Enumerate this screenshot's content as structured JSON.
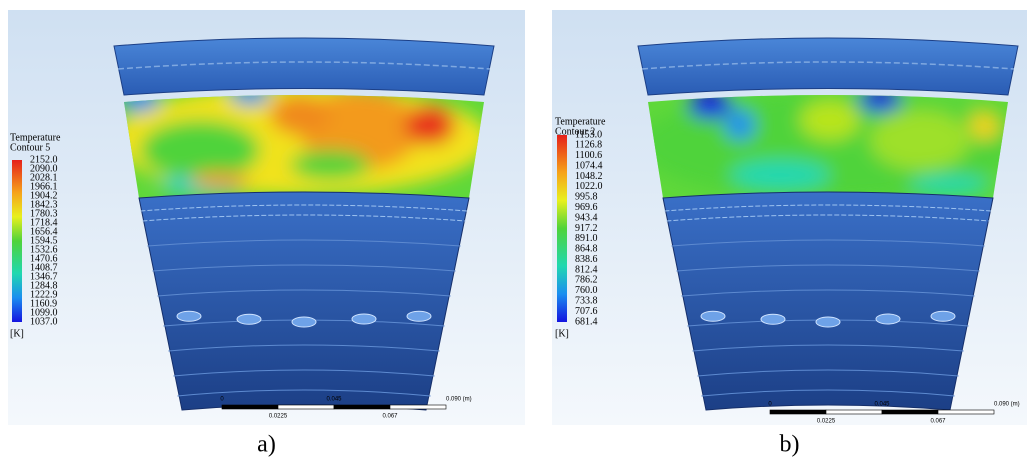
{
  "panels": [
    {
      "legend_title": [
        "Temperature",
        "Contour 5"
      ],
      "legend_values": [
        "2152.0",
        "2090.0",
        "2028.1",
        "1966.1",
        "1904.2",
        "1842.3",
        "1780.3",
        "1718.4",
        "1656.4",
        "1594.5",
        "1532.6",
        "1470.6",
        "1408.7",
        "1346.7",
        "1284.8",
        "1222.9",
        "1160.9",
        "1099.0",
        "1037.0"
      ],
      "unit": "[K]",
      "scale_top": [
        "0",
        "0.045",
        "0.090 (m)"
      ],
      "scale_bottom": [
        "0.0225",
        "0.067"
      ],
      "caption": "a)"
    },
    {
      "legend_title": [
        "Temperature",
        "Contour 2"
      ],
      "legend_values": [
        "1153.0",
        "1126.8",
        "1100.6",
        "1074.4",
        "1048.2",
        "1022.0",
        "995.8",
        "969.6",
        "943.4",
        "917.2",
        "891.0",
        "864.8",
        "838.6",
        "812.4",
        "786.2",
        "760.0",
        "733.8",
        "707.6",
        "681.4"
      ],
      "unit": "[K]",
      "scale_top": [
        "0",
        "0.045",
        "0.090 (m)"
      ],
      "scale_bottom": [
        "0.0225",
        "0.067"
      ],
      "caption": "b)"
    }
  ]
}
